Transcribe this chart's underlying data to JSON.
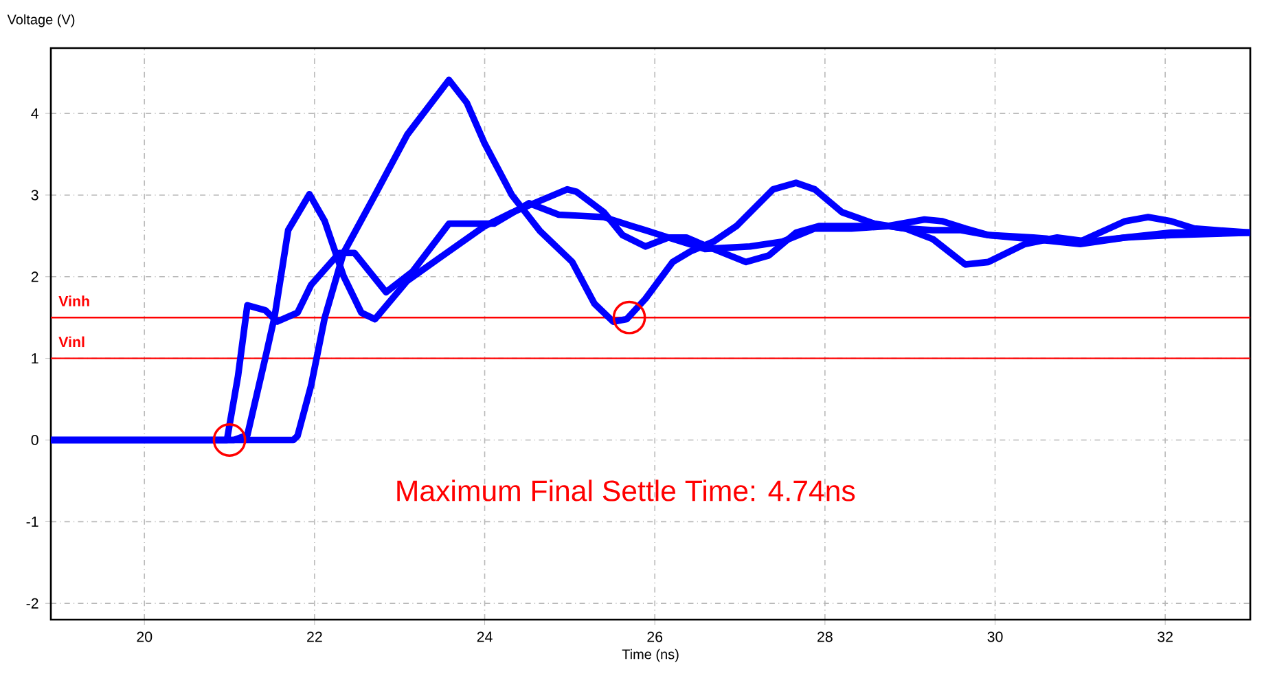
{
  "chart_data": {
    "type": "line",
    "xlabel": "Time (ns)",
    "ylabel": "Voltage (V)",
    "xlim": [
      18.9,
      33.0
    ],
    "ylim": [
      -2.2,
      4.8
    ],
    "xticks": [
      20,
      22,
      24,
      26,
      28,
      30,
      32
    ],
    "yticks": [
      -2,
      -1,
      0,
      1,
      2,
      3,
      4
    ],
    "grid": true,
    "marker": "none",
    "line_style": "solid",
    "series": [
      {
        "color": "#0000ff",
        "x": [
          18.9,
          20.97,
          21.1,
          21.21,
          21.42,
          21.56,
          21.8,
          21.96,
          22.29,
          22.47,
          22.84,
          23.15,
          23.58,
          24.11,
          24.52,
          24.87,
          25.4,
          25.73,
          25.89,
          26.16,
          26.59,
          27.12,
          27.5,
          27.88,
          28.31,
          28.74,
          29.17,
          29.38,
          29.65,
          29.92,
          30.45,
          31.0,
          31.53,
          32.07,
          33.0
        ],
        "values": [
          0,
          0,
          0.78,
          1.65,
          1.59,
          1.45,
          1.56,
          1.9,
          2.29,
          2.29,
          1.81,
          2.06,
          2.65,
          2.65,
          2.9,
          2.76,
          2.73,
          2.62,
          2.57,
          2.48,
          2.34,
          2.37,
          2.43,
          2.59,
          2.59,
          2.62,
          2.7,
          2.68,
          2.59,
          2.51,
          2.46,
          2.4,
          2.48,
          2.51,
          2.54
        ]
      },
      {
        "color": "#0000ff",
        "x": [
          18.9,
          21.05,
          21.21,
          21.42,
          21.53,
          21.69,
          21.94,
          22.12,
          22.34,
          22.55,
          22.71,
          23.09,
          23.47,
          24.0,
          24.33,
          24.97,
          25.08,
          25.4,
          25.62,
          25.89,
          26.16,
          26.37,
          26.69,
          27.07,
          27.34,
          27.66,
          27.93,
          28.31,
          28.74,
          28.95,
          29.27,
          29.65,
          29.92,
          30.35,
          30.73,
          31.1,
          31.53,
          32.07,
          33.0
        ],
        "values": [
          0,
          0,
          0.06,
          1.0,
          1.51,
          2.57,
          3.01,
          2.68,
          2.01,
          1.56,
          1.48,
          1.95,
          2.23,
          2.62,
          2.79,
          3.07,
          3.04,
          2.79,
          2.51,
          2.37,
          2.48,
          2.48,
          2.34,
          2.18,
          2.26,
          2.54,
          2.62,
          2.62,
          2.62,
          2.59,
          2.46,
          2.15,
          2.18,
          2.4,
          2.48,
          2.43,
          2.48,
          2.54,
          2.54
        ]
      },
      {
        "color": "#0000ff",
        "x": [
          18.9,
          21.75,
          21.8,
          21.96,
          22.12,
          22.34,
          22.71,
          23.09,
          23.25,
          23.58,
          23.79,
          24.0,
          24.32,
          24.65,
          25.03,
          25.29,
          25.51,
          25.67,
          25.89,
          26.21,
          26.42,
          26.69,
          26.96,
          27.39,
          27.66,
          27.88,
          28.2,
          28.58,
          28.95,
          29.27,
          29.6,
          29.92,
          30.45,
          31.0,
          31.53,
          31.8,
          32.07,
          32.34,
          33.0
        ],
        "values": [
          0,
          0,
          0.05,
          0.67,
          1.5,
          2.29,
          3.0,
          3.74,
          3.96,
          4.41,
          4.13,
          3.63,
          3.0,
          2.56,
          2.18,
          1.67,
          1.45,
          1.48,
          1.73,
          2.18,
          2.31,
          2.43,
          2.62,
          3.07,
          3.15,
          3.07,
          2.79,
          2.65,
          2.59,
          2.57,
          2.57,
          2.51,
          2.48,
          2.43,
          2.68,
          2.73,
          2.68,
          2.59,
          2.54
        ]
      },
      {
        "type": "scatter",
        "marker": "circle",
        "color": "#ff0000",
        "x": [
          21.0,
          25.7
        ],
        "values": [
          0,
          1.5
        ]
      }
    ],
    "ref_lines": [
      {
        "axis": "y",
        "value": 1.5,
        "label": "Vinh",
        "color": "#ff0000"
      },
      {
        "axis": "y",
        "value": 1.0,
        "label": "Vinl",
        "color": "#ff0000"
      }
    ],
    "annotations": [
      "Maximum Final Settle Time: 4.74ns"
    ]
  }
}
